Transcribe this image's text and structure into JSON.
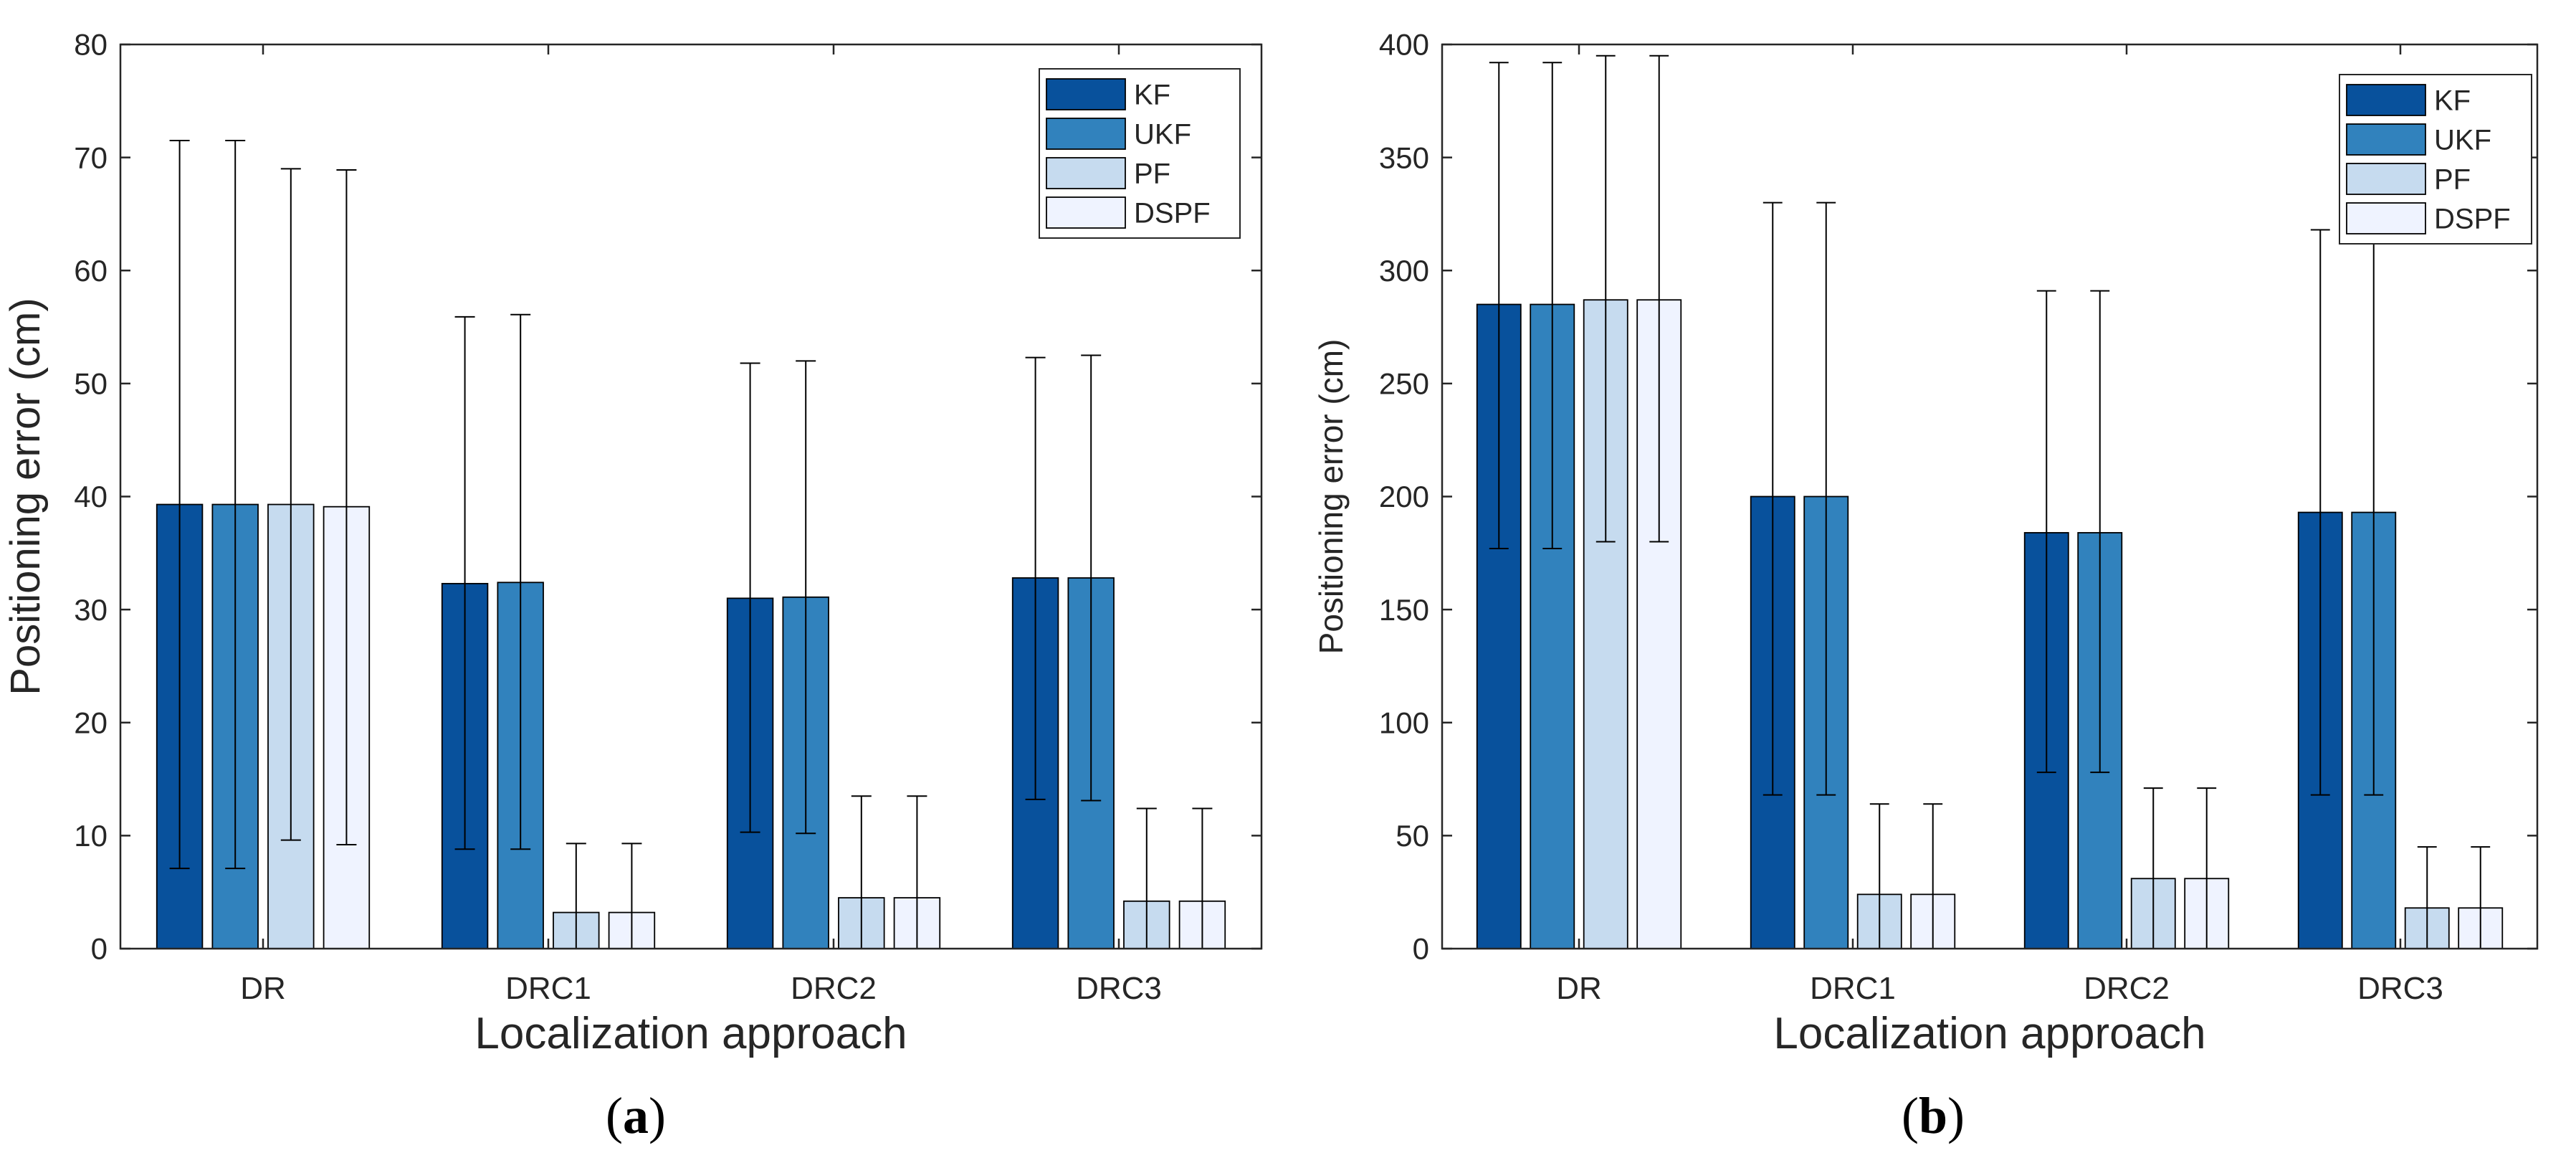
{
  "chart_data": [
    {
      "type": "bar",
      "panel_label": "a",
      "title": "",
      "xlabel": "Localization approach",
      "ylabel": "Positioning error (cm)",
      "ylim": [
        0,
        80
      ],
      "yticks": [
        0,
        10,
        20,
        30,
        40,
        50,
        60,
        70,
        80
      ],
      "grid": false,
      "legend_position": "top-right",
      "categories": [
        "DR",
        "DRC1",
        "DRC2",
        "DRC3"
      ],
      "series": [
        {
          "name": "KF",
          "color": "#08519c",
          "values": [
            39.3,
            32.3,
            31.0,
            32.8
          ],
          "err_low": [
            7.1,
            8.8,
            10.3,
            13.2
          ],
          "err_high": [
            71.5,
            55.9,
            51.8,
            52.3
          ]
        },
        {
          "name": "UKF",
          "color": "#3182bd",
          "values": [
            39.3,
            32.4,
            31.1,
            32.8
          ],
          "err_low": [
            7.1,
            8.8,
            10.2,
            13.1
          ],
          "err_high": [
            71.5,
            56.1,
            52.0,
            52.5
          ]
        },
        {
          "name": "PF",
          "color": "#c6dbef",
          "values": [
            39.3,
            3.2,
            4.5,
            4.2
          ],
          "err_low": [
            9.6,
            0,
            0,
            0
          ],
          "err_high": [
            69.0,
            9.3,
            13.5,
            12.4
          ]
        },
        {
          "name": "DSPF",
          "color": "#eff3ff",
          "values": [
            39.1,
            3.2,
            4.5,
            4.2
          ],
          "err_low": [
            9.2,
            0,
            0,
            0
          ],
          "err_high": [
            68.9,
            9.3,
            13.5,
            12.4
          ]
        }
      ]
    },
    {
      "type": "bar",
      "panel_label": "b",
      "title": "",
      "xlabel": "Localization approach",
      "ylabel": "Positioning error (cm)",
      "ylim": [
        0,
        400
      ],
      "yticks": [
        0,
        50,
        100,
        150,
        200,
        250,
        300,
        350,
        400
      ],
      "grid": false,
      "legend_position": "top-right",
      "categories": [
        "DR",
        "DRC1",
        "DRC2",
        "DRC3"
      ],
      "series": [
        {
          "name": "KF",
          "color": "#08519c",
          "values": [
            285,
            200,
            184,
            193
          ],
          "err_low": [
            177,
            68,
            78,
            68
          ],
          "err_high": [
            392,
            330,
            291,
            318
          ]
        },
        {
          "name": "UKF",
          "color": "#3182bd",
          "values": [
            285,
            200,
            184,
            193
          ],
          "err_low": [
            177,
            68,
            78,
            68
          ],
          "err_high": [
            392,
            330,
            291,
            318
          ]
        },
        {
          "name": "PF",
          "color": "#c6dbef",
          "values": [
            287,
            24,
            31,
            18
          ],
          "err_low": [
            180,
            0,
            0,
            0
          ],
          "err_high": [
            395,
            64,
            71,
            45
          ]
        },
        {
          "name": "DSPF",
          "color": "#eff3ff",
          "values": [
            287,
            24,
            31,
            18
          ],
          "err_low": [
            180,
            0,
            0,
            0
          ],
          "err_high": [
            395,
            64,
            71,
            45
          ]
        }
      ]
    }
  ]
}
